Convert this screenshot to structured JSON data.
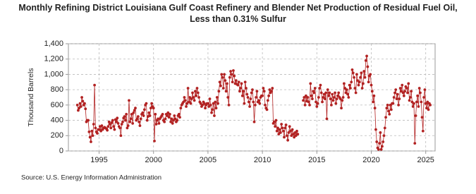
{
  "chart_data": {
    "type": "line",
    "title": "Monthly Refining District Louisiana Gulf Coast Refinery and Blender Net Production of Residual Fuel Oil, Less than 0.31% Sulfur",
    "ylabel": "Thousand Barrels",
    "source": "Source: U.S. Energy Information Administration",
    "color": "#b22222",
    "grid": true,
    "ylim": [
      0,
      1400
    ],
    "yticks": [
      0,
      200,
      400,
      600,
      800,
      {
        "value": 1000,
        "label": "1,000"
      },
      {
        "value": 1200,
        "label": "1,200"
      },
      {
        "value": 1400,
        "label": "1,400"
      }
    ],
    "categories": [
      null,
      null,
      null,
      null,
      null,
      null,
      null,
      null,
      null,
      null,
      null,
      null,
      null,
      null,
      null,
      null,
      null,
      null,
      null,
      null,
      null,
      null,
      null,
      null,
      "1995",
      null,
      null,
      null,
      null,
      null,
      null,
      null,
      null,
      null,
      null,
      null,
      null,
      null,
      null,
      null,
      null,
      null,
      null,
      null,
      null,
      null,
      null,
      null,
      null,
      null,
      null,
      null,
      null,
      null,
      null,
      null,
      null,
      null,
      null,
      null,
      null,
      null,
      null,
      null,
      null,
      null,
      null,
      null,
      null,
      null,
      null,
      null,
      null,
      null,
      null,
      null,
      null,
      null,
      null,
      null,
      null,
      null,
      null,
      null,
      "2000",
      null,
      null,
      null,
      null,
      null,
      null,
      null,
      null,
      null,
      null,
      null,
      null,
      null,
      null,
      null,
      null,
      null,
      null,
      null,
      null,
      null,
      null,
      null,
      null,
      null,
      null,
      null,
      null,
      null,
      null,
      null,
      null,
      null,
      null,
      null,
      null,
      null,
      null,
      null,
      null,
      null,
      null,
      null,
      null,
      null,
      null,
      null,
      null,
      null,
      null,
      null,
      null,
      null,
      null,
      null,
      null,
      null,
      null,
      null,
      "2005",
      null,
      null,
      null,
      null,
      null,
      null,
      null,
      null,
      null,
      null,
      null,
      null,
      null,
      null,
      null,
      null,
      null,
      null,
      null,
      null,
      null,
      null,
      null,
      null,
      null,
      null,
      null,
      null,
      null,
      null,
      null,
      null,
      null,
      null,
      null,
      null,
      null,
      null,
      null,
      null,
      null,
      null,
      null,
      null,
      null,
      null,
      null,
      null,
      null,
      null,
      null,
      null,
      null,
      null,
      null,
      null,
      null,
      null,
      null,
      "2010",
      null,
      null,
      null,
      null,
      null,
      null,
      null,
      null,
      null,
      null,
      null,
      null,
      null,
      null,
      null,
      null,
      null,
      null,
      null,
      null,
      null,
      null,
      null,
      null,
      null,
      null,
      null,
      null,
      null,
      null,
      null,
      null,
      null,
      null,
      null,
      null,
      null,
      null,
      null,
      null,
      null,
      null,
      null,
      null,
      null,
      null,
      null,
      null,
      null,
      null,
      null,
      null,
      null,
      null,
      null,
      null,
      null,
      null,
      null,
      "2015",
      null,
      null,
      null,
      null,
      null,
      null,
      null,
      null,
      null,
      null,
      null,
      null,
      null,
      null,
      null,
      null,
      null,
      null,
      null,
      null,
      null,
      null,
      null,
      null,
      null,
      null,
      null,
      null,
      null,
      null,
      null,
      null,
      null,
      null,
      null,
      null,
      null,
      null,
      null,
      null,
      null,
      null,
      null,
      null,
      null,
      null,
      null,
      null,
      null,
      null,
      null,
      null,
      null,
      null,
      null,
      null,
      null,
      null,
      null,
      "2020",
      null,
      null,
      null,
      null,
      null,
      null,
      null,
      null,
      null,
      null,
      null,
      null,
      null,
      null,
      null,
      null,
      null,
      null,
      null,
      null,
      null,
      null,
      null,
      null,
      null,
      null,
      null,
      null,
      null,
      null,
      null,
      null,
      null,
      null,
      null,
      null,
      null,
      null,
      null,
      null,
      null,
      null,
      null,
      null,
      null,
      null,
      null,
      null,
      null,
      null,
      null,
      null,
      null,
      null,
      null,
      null,
      null,
      null,
      null,
      "2025",
      null,
      null,
      null,
      null,
      null
    ],
    "values": [
      600,
      530,
      560,
      620,
      580,
      700,
      650,
      600,
      620,
      550,
      380,
      400,
      400,
      250,
      180,
      120,
      260,
      200,
      350,
      860,
      300,
      250,
      230,
      280,
      280,
      320,
      260,
      330,
      280,
      300,
      310,
      300,
      290,
      270,
      320,
      380,
      350,
      300,
      370,
      400,
      320,
      280,
      410,
      380,
      430,
      360,
      320,
      300,
      200,
      350,
      380,
      430,
      450,
      400,
      480,
      300,
      330,
      660,
      380,
      420,
      480,
      360,
      500,
      530,
      560,
      400,
      420,
      450,
      380,
      330,
      420,
      480,
      500,
      460,
      540,
      600,
      620,
      400,
      450,
      500,
      460,
      560,
      620,
      580,
      560,
      130,
      480,
      350,
      400,
      420,
      360,
      420,
      440,
      460,
      480,
      400,
      380,
      420,
      480,
      460,
      500,
      440,
      480,
      380,
      420,
      360,
      400,
      460,
      420,
      380,
      400,
      460,
      480,
      440,
      560,
      600,
      620,
      640,
      700,
      660,
      580,
      620,
      820,
      640,
      700,
      620,
      680,
      760,
      700,
      660,
      780,
      720,
      820,
      760,
      700,
      640,
      620,
      580,
      600,
      640,
      620,
      560,
      600,
      620,
      620,
      580,
      680,
      600,
      500,
      540,
      620,
      460,
      640,
      560,
      700,
      620,
      780,
      900,
      850,
      1000,
      960,
      820,
      1000,
      920,
      780,
      880,
      700,
      600,
      960,
      1040,
      1000,
      900,
      1050,
      980,
      880,
      920,
      870,
      860,
      900,
      780,
      820,
      880,
      720,
      780,
      620,
      900,
      820,
      740,
      700,
      640,
      580,
      680,
      760,
      800,
      640,
      380,
      600,
      700,
      780,
      640,
      660,
      620,
      700,
      720,
      720,
      820,
      780,
      600,
      560,
      540,
      660,
      720,
      800,
      760,
      780,
      820,
      360,
      380,
      320,
      400,
      260,
      300,
      220,
      280,
      240,
      350,
      300,
      260,
      180,
      300,
      340,
      200,
      140,
      240,
      320,
      260,
      200,
      280,
      220,
      180,
      240,
      200,
      260,
      220,
      null,
      null,
      null,
      null,
      null,
      660,
      700,
      600,
      720,
      650,
      700,
      640,
      600,
      880,
      720,
      680,
      780,
      760,
      820,
      640,
      580,
      620,
      700,
      820,
      860,
      760,
      640,
      700,
      740,
      680,
      760,
      420,
      800,
      720,
      760,
      680,
      600,
      740,
      660,
      700,
      760,
      620,
      680,
      720,
      760,
      700,
      680,
      560,
      660,
      700,
      880,
      820,
      760,
      800,
      740,
      700,
      860,
      820,
      900,
      1060,
      1020,
      960,
      820,
      760,
      1000,
      920,
      860,
      900,
      960,
      1020,
      820,
      880,
      1040,
      960,
      1180,
      1240,
      1100,
      900,
      980,
      1000,
      860,
      780,
      640,
      720,
      560,
      280,
      120,
      40,
      20,
      100,
      240,
      20,
      60,
      120,
      200,
      300,
      440,
      560,
      600,
      520,
      480,
      600,
      540,
      620,
      620,
      700,
      760,
      800,
      680,
      740,
      600,
      680,
      820,
      780,
      860,
      760,
      720,
      780,
      840,
      820,
      760,
      880,
      660,
      700,
      780,
      640,
      580,
      620,
      100,
      460,
      640,
      720,
      580,
      820,
      760,
      640,
      440,
      260,
      700,
      800,
      620,
      560,
      640,
      540,
      620,
      600
    ]
  }
}
